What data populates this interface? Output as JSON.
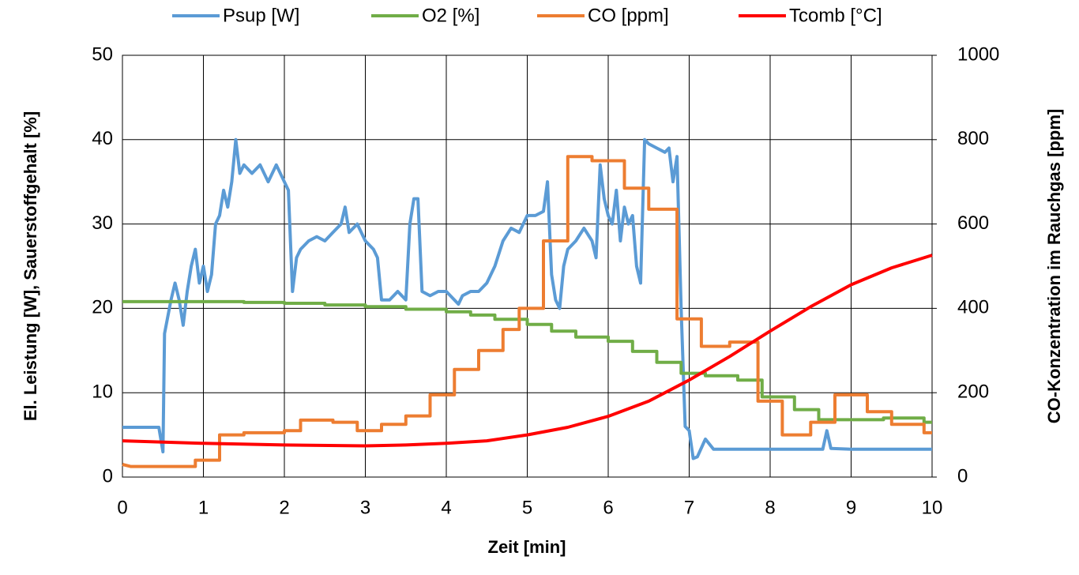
{
  "chart_data": {
    "type": "line",
    "xlabel": "Zeit [min]",
    "ylabel": "El. Leistung [W], Sauerstoffgehalt [%]",
    "y2label": "CO-Konzentration im Rauchgas [ppm]",
    "xlim": [
      0,
      10
    ],
    "xticks": [
      0,
      1,
      2,
      3,
      4,
      5,
      6,
      7,
      8,
      9,
      10
    ],
    "ylim": [
      0,
      50
    ],
    "yticks": [
      0,
      10,
      20,
      30,
      40,
      50
    ],
    "y2lim": [
      0,
      1000
    ],
    "y2ticks": [
      0,
      200,
      400,
      600,
      800,
      1000
    ],
    "grid": true,
    "legend": "top",
    "series": [
      {
        "name": "Psup [W]",
        "color": "#5b9bd5",
        "x": [
          0,
          0.45,
          0.5,
          0.52,
          0.6,
          0.65,
          0.7,
          0.75,
          0.8,
          0.85,
          0.9,
          0.95,
          1.0,
          1.05,
          1.1,
          1.15,
          1.2,
          1.25,
          1.3,
          1.35,
          1.4,
          1.45,
          1.5,
          1.6,
          1.7,
          1.8,
          1.9,
          2.0,
          2.05,
          2.1,
          2.15,
          2.2,
          2.3,
          2.4,
          2.5,
          2.6,
          2.7,
          2.75,
          2.8,
          2.9,
          3.0,
          3.1,
          3.15,
          3.2,
          3.3,
          3.4,
          3.5,
          3.55,
          3.6,
          3.65,
          3.7,
          3.8,
          3.9,
          4.0,
          4.1,
          4.15,
          4.2,
          4.3,
          4.4,
          4.5,
          4.6,
          4.7,
          4.8,
          4.9,
          5.0,
          5.1,
          5.2,
          5.25,
          5.3,
          5.35,
          5.4,
          5.45,
          5.5,
          5.6,
          5.7,
          5.8,
          5.85,
          5.9,
          5.95,
          6.0,
          6.05,
          6.1,
          6.15,
          6.2,
          6.25,
          6.3,
          6.35,
          6.4,
          6.45,
          6.5,
          6.6,
          6.7,
          6.75,
          6.8,
          6.85,
          6.9,
          6.95,
          7.0,
          7.05,
          7.1,
          7.2,
          7.3,
          8.0,
          8.65,
          8.7,
          8.75,
          9.0,
          10
        ],
        "values": [
          5.9,
          5.9,
          3,
          17,
          21,
          23,
          21,
          18,
          22,
          25,
          27,
          23,
          25,
          22,
          24,
          30,
          31,
          34,
          32,
          35,
          40,
          36,
          37,
          36,
          37,
          35,
          37,
          35,
          34,
          22,
          26,
          27,
          28,
          28.5,
          28,
          29,
          30,
          32,
          29,
          30,
          28,
          27,
          26,
          21,
          21,
          22,
          21,
          30,
          33,
          33,
          22,
          21.5,
          22,
          22,
          21,
          20.5,
          21.5,
          22,
          22,
          23,
          25,
          28,
          29.5,
          29,
          31,
          31,
          31.5,
          35,
          24,
          21,
          20,
          25,
          27,
          28,
          29.5,
          28,
          26,
          37,
          33,
          31,
          30,
          34,
          28,
          32,
          30,
          31,
          25,
          23,
          40,
          39.5,
          39,
          38.5,
          39,
          35,
          38,
          20,
          6,
          5.5,
          2.2,
          2.4,
          4.5,
          3.3,
          3.3,
          3.3,
          5.5,
          3.4,
          3.3,
          3.3
        ]
      },
      {
        "name": "O2 [%]",
        "color": "#70ad47",
        "x": [
          0,
          1.5,
          1.5,
          2,
          2,
          2.5,
          2.5,
          3,
          3,
          3.5,
          3.5,
          4,
          4,
          4.3,
          4.3,
          4.6,
          4.6,
          5,
          5,
          5.3,
          5.3,
          5.6,
          5.6,
          6,
          6,
          6.3,
          6.3,
          6.6,
          6.6,
          6.9,
          6.9,
          7.2,
          7.2,
          7.6,
          7.6,
          7.9,
          7.9,
          8.3,
          8.3,
          8.6,
          8.6,
          9.4,
          9.4,
          9.9,
          9.9,
          10
        ],
        "values": [
          20.8,
          20.8,
          20.7,
          20.7,
          20.6,
          20.6,
          20.4,
          20.4,
          20.2,
          20.2,
          19.9,
          19.9,
          19.6,
          19.6,
          19.2,
          19.2,
          18.7,
          18.7,
          18.1,
          18.1,
          17.3,
          17.3,
          16.6,
          16.6,
          16.1,
          16.1,
          14.9,
          14.9,
          13.6,
          13.6,
          12.3,
          12.3,
          12.0,
          12.0,
          11.5,
          11.5,
          9.5,
          9.5,
          8.0,
          8.0,
          6.8,
          6.8,
          7.0,
          7.0,
          6.5,
          6.5
        ]
      },
      {
        "name": "CO [ppm]",
        "color": "#ed7d31",
        "axis": "y2",
        "x": [
          0,
          0.1,
          0.9,
          0.9,
          1.2,
          1.2,
          1.5,
          1.5,
          2.0,
          2.0,
          2.2,
          2.2,
          2.6,
          2.6,
          2.9,
          2.9,
          3.2,
          3.2,
          3.5,
          3.5,
          3.8,
          3.8,
          4.1,
          4.1,
          4.4,
          4.4,
          4.7,
          4.7,
          4.9,
          4.9,
          5.2,
          5.2,
          5.5,
          5.5,
          5.8,
          5.8,
          6.2,
          6.2,
          6.5,
          6.5,
          6.85,
          6.85,
          7.15,
          7.15,
          7.5,
          7.5,
          7.85,
          7.85,
          8.15,
          8.15,
          8.5,
          8.5,
          8.8,
          8.8,
          9.2,
          9.2,
          9.5,
          9.5,
          9.9,
          9.9,
          10
        ],
        "values": [
          30,
          25,
          25,
          40,
          40,
          100,
          100,
          105,
          105,
          110,
          110,
          135,
          135,
          130,
          130,
          110,
          110,
          125,
          125,
          145,
          145,
          195,
          195,
          255,
          255,
          300,
          300,
          350,
          350,
          400,
          400,
          560,
          560,
          760,
          760,
          750,
          750,
          685,
          685,
          635,
          635,
          375,
          375,
          310,
          310,
          320,
          320,
          180,
          180,
          100,
          100,
          130,
          130,
          195,
          195,
          155,
          155,
          125,
          125,
          105,
          105
        ]
      },
      {
        "name": "Tcomb [°C]",
        "color": "#ff0000",
        "x": [
          0,
          1,
          2,
          3,
          3.5,
          4,
          4.5,
          5,
          5.5,
          6,
          6.5,
          7,
          7.5,
          8,
          8.5,
          9,
          9.5,
          10
        ],
        "values": [
          4.3,
          4.0,
          3.8,
          3.7,
          3.8,
          4.0,
          4.3,
          5.0,
          5.9,
          7.2,
          9.0,
          11.5,
          14.3,
          17.3,
          20.2,
          22.8,
          24.8,
          26.3
        ]
      }
    ]
  }
}
